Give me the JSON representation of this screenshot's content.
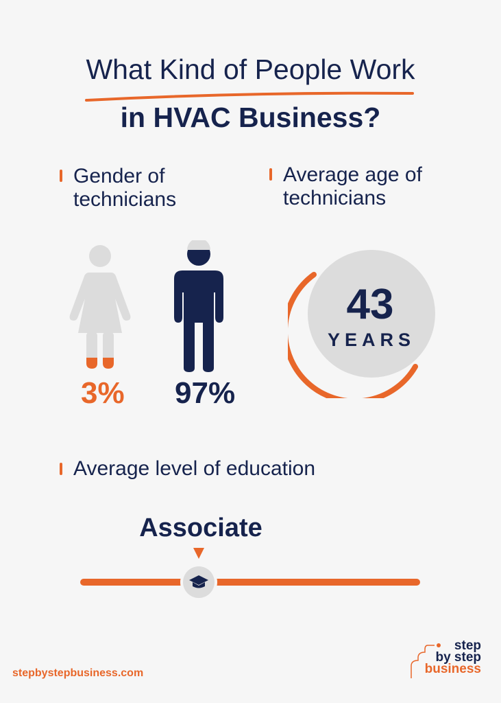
{
  "title": {
    "line1": "What Kind of People Work",
    "line2": "in HVAC Business?"
  },
  "gender": {
    "heading_line1": "Gender of",
    "heading_line2": "technicians",
    "female_percent": "3%",
    "male_percent": "97%"
  },
  "age": {
    "heading_line1": "Average age of",
    "heading_line2": "technicians",
    "value": "43",
    "unit": "YEARS"
  },
  "education": {
    "heading": "Average level of education",
    "level": "Associate"
  },
  "footer": {
    "website": "stepbystepbusiness.com",
    "logo_text": [
      "step",
      "by step",
      "business"
    ]
  },
  "colors": {
    "navy": "#16234d",
    "orange": "#e8672a",
    "gray": "#dcdcdc",
    "background": "#f6f6f6"
  }
}
